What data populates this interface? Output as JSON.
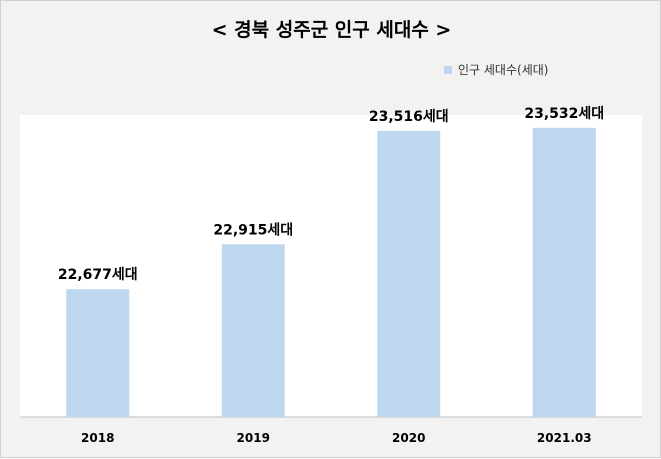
{
  "chart_data": {
    "type": "bar",
    "title": "< 경북 성주군 인구 세대수 >",
    "categories": [
      "2018",
      "2019",
      "2020",
      "2021.03"
    ],
    "series": [
      {
        "name": "인구 세대수(세대)",
        "values": [
          22677,
          22915,
          23516,
          23532
        ],
        "labels": [
          "22,677세대",
          "22,915세대",
          "23,516세대",
          "23,532세대"
        ]
      }
    ],
    "bar_color": "#bdd7ee",
    "ylim": [
      22000,
      23600
    ],
    "grid": false,
    "legend_position": "top-right"
  }
}
